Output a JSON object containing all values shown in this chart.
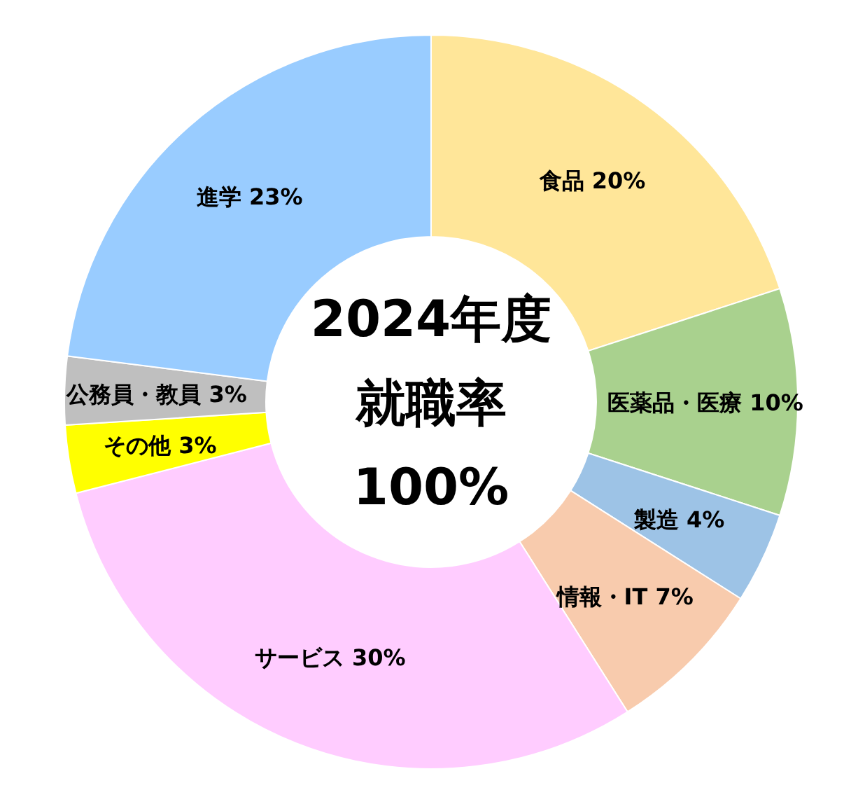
{
  "chart_data": {
    "type": "donut",
    "title": "2024年度",
    "subtitle": "就職率",
    "annotations": [
      "100%"
    ],
    "categories": [
      "食品",
      "医薬品・医療",
      "製造",
      "情報・IT",
      "サービス",
      "その他",
      "公務員・教員",
      "進学"
    ],
    "values": [
      20,
      10,
      4,
      7,
      30,
      3,
      3,
      23
    ],
    "value_labels": [
      "20%",
      "10%",
      "4%",
      "7%",
      "30%",
      "3%",
      "3%",
      "23%"
    ],
    "colors": [
      "#ffe699",
      "#a9d18e",
      "#9dc3e6",
      "#f8cbad",
      "#ffccff",
      "#ffff00",
      "#bfbfbf",
      "#99ccff"
    ]
  }
}
